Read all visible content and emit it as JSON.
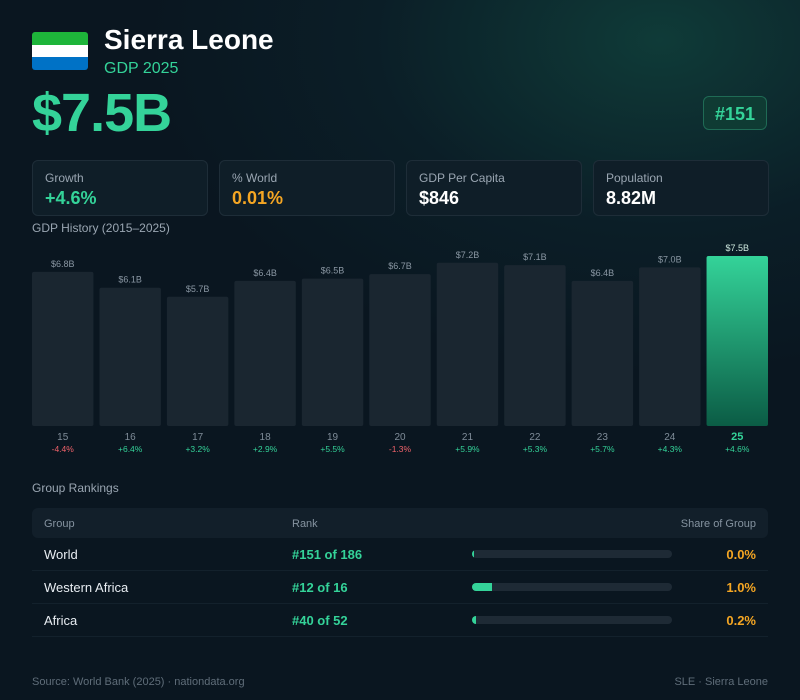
{
  "header": {
    "country": "Sierra Leone",
    "subtitle": "GDP 2025",
    "gdp": "$7.5B",
    "rank": "#151"
  },
  "flag_colors": [
    "#1eb53a",
    "#ffffff",
    "#0072c6"
  ],
  "stats": [
    {
      "label": "Growth",
      "value": "+4.6%",
      "color": "#34d399"
    },
    {
      "label": "% World",
      "value": "0.01%",
      "color": "#f5a623"
    },
    {
      "label": "GDP Per Capita",
      "value": "$846",
      "color": "#ffffff"
    },
    {
      "label": "Population",
      "value": "8.82M",
      "color": "#ffffff"
    }
  ],
  "chart_title": "GDP History (2015–2025)",
  "chart_data": {
    "type": "bar",
    "categories": [
      "15",
      "16",
      "17",
      "18",
      "19",
      "20",
      "21",
      "22",
      "23",
      "24",
      "25"
    ],
    "values": [
      6.8,
      6.1,
      5.7,
      6.4,
      6.5,
      6.7,
      7.2,
      7.1,
      6.4,
      7.0,
      7.5
    ],
    "value_labels": [
      "$6.8B",
      "$6.1B",
      "$5.7B",
      "$6.4B",
      "$6.5B",
      "$6.7B",
      "$7.2B",
      "$7.1B",
      "$6.4B",
      "$7.0B",
      "$7.5B"
    ],
    "growth_labels": [
      "-4.4%",
      "+6.4%",
      "+3.2%",
      "+2.9%",
      "+5.5%",
      "-1.3%",
      "+5.9%",
      "+5.3%",
      "+5.7%",
      "+4.3%",
      "+4.6%"
    ],
    "highlight_index": 10,
    "colors": {
      "bar": "#1a2630",
      "highlight_top": "#34d399",
      "highlight_bottom": "#0b5c45",
      "positive": "#34d399",
      "negative": "#f0626a"
    }
  },
  "rankings": {
    "title": "Group Rankings",
    "headers": {
      "group": "Group",
      "rank": "Rank",
      "share": "Share of Group"
    },
    "rows": [
      {
        "group": "World",
        "rank": "#151 of 186",
        "share": "0.0%",
        "share_value": 0.0
      },
      {
        "group": "Western Africa",
        "rank": "#12 of 16",
        "share": "1.0%",
        "share_value": 1.0
      },
      {
        "group": "Africa",
        "rank": "#40 of 52",
        "share": "0.2%",
        "share_value": 0.2
      }
    ]
  },
  "footer": {
    "source": "Source: World Bank (2025) · nationdata.org",
    "code": "SLE · Sierra Leone"
  }
}
